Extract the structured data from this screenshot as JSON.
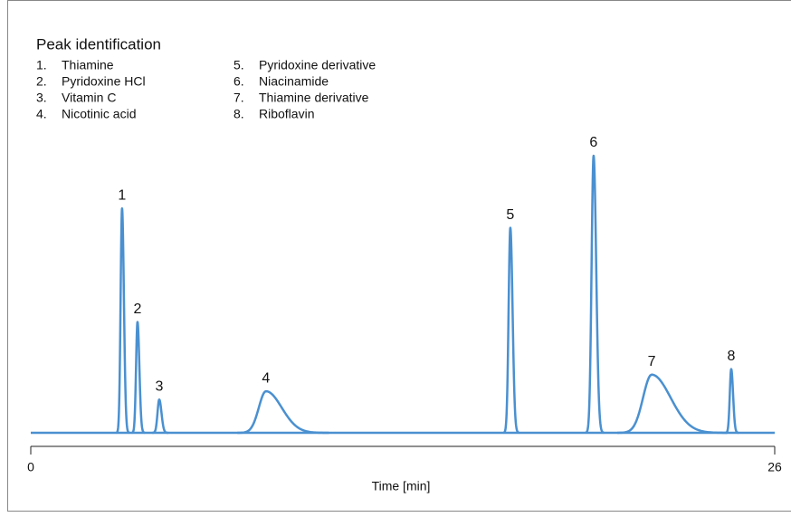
{
  "chart_data": {
    "type": "chromatogram",
    "legend_title": "Peak identification",
    "legend_items": [
      {
        "number": "1.",
        "name": "Thiamine"
      },
      {
        "number": "2.",
        "name": "Pyridoxine HCl"
      },
      {
        "number": "3.",
        "name": "Vitamin C"
      },
      {
        "number": "4.",
        "name": "Nicotinic acid"
      },
      {
        "number": "5.",
        "name": "Pyridoxine derivative"
      },
      {
        "number": "6.",
        "name": "Niacinamide"
      },
      {
        "number": "7.",
        "name": "Thiamine derivative"
      },
      {
        "number": "8.",
        "name": "Riboflavin"
      }
    ],
    "peaks": [
      {
        "label": "1",
        "x": 3.19,
        "height": 81,
        "width": 0.05
      },
      {
        "label": "2",
        "x": 3.73,
        "height": 40,
        "width": 0.05
      },
      {
        "label": "3",
        "x": 4.49,
        "height": 12,
        "width": 0.06
      },
      {
        "label": "4",
        "x": 8.22,
        "height": 15,
        "width": 0.25
      },
      {
        "label": "5",
        "x": 16.76,
        "height": 74,
        "width": 0.06
      },
      {
        "label": "6",
        "x": 19.67,
        "height": 100,
        "width": 0.07
      },
      {
        "label": "7",
        "x": 21.7,
        "height": 21,
        "width": 0.3
      },
      {
        "label": "8",
        "x": 24.48,
        "height": 23,
        "width": 0.05
      }
    ],
    "color": "#4a90d0",
    "xlabel": "Time [min]",
    "xlim": [
      0,
      26
    ],
    "xticks": [
      0,
      26
    ],
    "ylim": [
      0,
      100
    ]
  }
}
